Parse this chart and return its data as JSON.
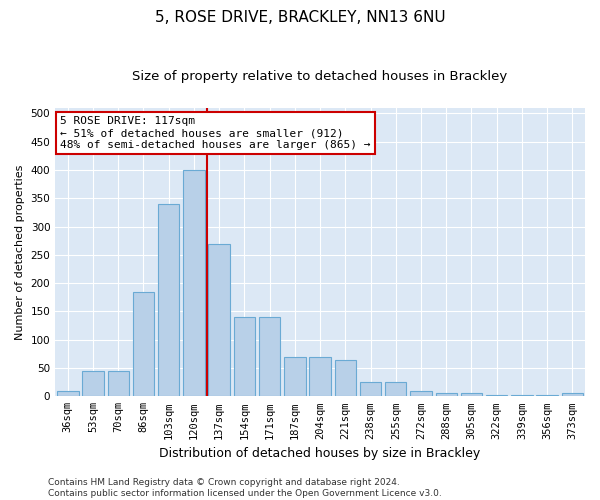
{
  "title": "5, ROSE DRIVE, BRACKLEY, NN13 6NU",
  "subtitle": "Size of property relative to detached houses in Brackley",
  "xlabel": "Distribution of detached houses by size in Brackley",
  "ylabel": "Number of detached properties",
  "categories": [
    "36sqm",
    "53sqm",
    "70sqm",
    "86sqm",
    "103sqm",
    "120sqm",
    "137sqm",
    "154sqm",
    "171sqm",
    "187sqm",
    "204sqm",
    "221sqm",
    "238sqm",
    "255sqm",
    "272sqm",
    "288sqm",
    "305sqm",
    "322sqm",
    "339sqm",
    "356sqm",
    "373sqm"
  ],
  "values": [
    10,
    45,
    45,
    185,
    340,
    400,
    270,
    140,
    140,
    70,
    70,
    65,
    25,
    25,
    10,
    5,
    5,
    3,
    3,
    2,
    5
  ],
  "bar_color": "#b8d0e8",
  "bar_edge_color": "#6aaad4",
  "bar_linewidth": 0.8,
  "property_line_color": "#cc0000",
  "property_line_index": 5,
  "annotation_text": "5 ROSE DRIVE: 117sqm\n← 51% of detached houses are smaller (912)\n48% of semi-detached houses are larger (865) →",
  "annotation_box_facecolor": "#ffffff",
  "annotation_box_edgecolor": "#cc0000",
  "ylim": [
    0,
    510
  ],
  "yticks": [
    0,
    50,
    100,
    150,
    200,
    250,
    300,
    350,
    400,
    450,
    500
  ],
  "plot_bg_color": "#dce8f5",
  "grid_color": "#ffffff",
  "title_fontsize": 11,
  "subtitle_fontsize": 9.5,
  "xlabel_fontsize": 9,
  "ylabel_fontsize": 8,
  "tick_fontsize": 7.5,
  "annot_fontsize": 8,
  "footnote_fontsize": 6.5,
  "footnote": "Contains HM Land Registry data © Crown copyright and database right 2024.\nContains public sector information licensed under the Open Government Licence v3.0."
}
